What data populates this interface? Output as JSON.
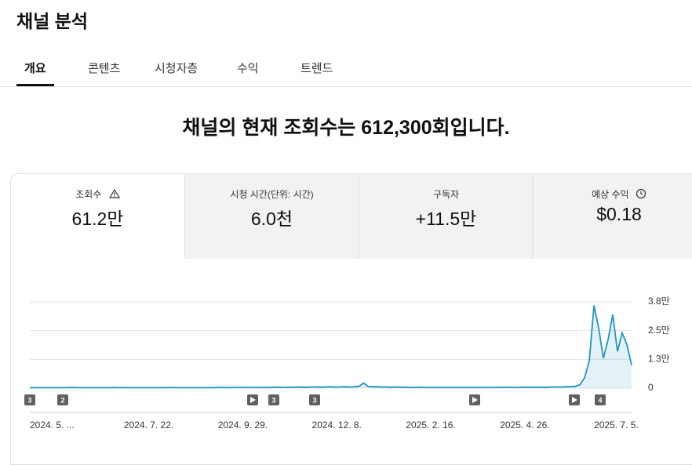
{
  "header": {
    "title": "채널 분석"
  },
  "tabs": [
    "개요",
    "콘텐츠",
    "시청자층",
    "수익",
    "트렌드"
  ],
  "headline": "채널의 현재 조회수는 612,300회입니다.",
  "metrics": [
    {
      "label": "조회수",
      "value": "61.2만"
    },
    {
      "label": "시청 시간(단위: 시간)",
      "value": "6.0천"
    },
    {
      "label": "구독자",
      "value": "+11.5만"
    },
    {
      "label": "예상 수익",
      "value": "$0.18"
    }
  ],
  "chart_markers": [
    "3",
    "2",
    "3",
    "3",
    "4"
  ],
  "chart_data": {
    "type": "line",
    "color": "#1e96be",
    "grid": true,
    "ylim": [
      0,
      3.75
    ],
    "yticks": [
      0,
      {
        "value": 1.25,
        "label": "1.3만"
      },
      {
        "value": 2.5,
        "label": "2.5만"
      },
      {
        "value": 3.75,
        "label": "3.8만"
      }
    ],
    "categories": [
      "2024. 5. ...",
      null,
      null,
      null,
      null,
      null,
      null,
      null,
      null,
      null,
      null,
      null,
      null,
      null,
      null,
      null,
      null,
      null,
      null,
      null,
      "2024. 7. 22.",
      null,
      null,
      null,
      null,
      null,
      null,
      null,
      null,
      null,
      null,
      null,
      null,
      null,
      null,
      null,
      null,
      null,
      null,
      null,
      "2024. 9. 29.",
      null,
      null,
      null,
      null,
      null,
      null,
      null,
      null,
      null,
      null,
      null,
      null,
      null,
      null,
      null,
      null,
      null,
      null,
      null,
      "2024. 12. 8.",
      null,
      null,
      null,
      null,
      null,
      null,
      null,
      null,
      null,
      null,
      null,
      null,
      null,
      null,
      null,
      null,
      null,
      null,
      null,
      "2025. 2. 16.",
      null,
      null,
      null,
      null,
      null,
      null,
      null,
      null,
      null,
      null,
      null,
      null,
      null,
      null,
      null,
      null,
      null,
      null,
      null,
      "2025. 4. 26.",
      null,
      null,
      null,
      null,
      null,
      null,
      null,
      null,
      null,
      null,
      null,
      null,
      null,
      null,
      null,
      null,
      null,
      null,
      null,
      "2025. 7. 5.",
      null,
      null,
      null,
      null,
      null,
      null,
      null,
      null
    ],
    "values": [
      0.02,
      0.02,
      0.02,
      0.02,
      0.02,
      0.02,
      0.02,
      0.02,
      0.02,
      0.03,
      0.02,
      0.02,
      0.02,
      0.02,
      0.02,
      0.02,
      0.02,
      0.02,
      0.03,
      0.02,
      0.02,
      0.02,
      0.02,
      0.02,
      0.02,
      0.02,
      0.02,
      0.02,
      0.02,
      0.02,
      0.03,
      0.02,
      0.02,
      0.02,
      0.02,
      0.02,
      0.02,
      0.02,
      0.02,
      0.02,
      0.03,
      0.03,
      0.02,
      0.03,
      0.03,
      0.03,
      0.03,
      0.03,
      0.03,
      0.03,
      0.03,
      0.03,
      0.04,
      0.04,
      0.03,
      0.04,
      0.04,
      0.05,
      0.04,
      0.04,
      0.05,
      0.05,
      0.04,
      0.05,
      0.06,
      0.05,
      0.05,
      0.06,
      0.05,
      0.06,
      0.08,
      0.22,
      0.07,
      0.06,
      0.06,
      0.05,
      0.05,
      0.04,
      0.05,
      0.04,
      0.04,
      0.03,
      0.03,
      0.04,
      0.03,
      0.03,
      0.03,
      0.03,
      0.03,
      0.03,
      0.03,
      0.03,
      0.03,
      0.03,
      0.03,
      0.03,
      0.03,
      0.03,
      0.03,
      0.03,
      0.04,
      0.03,
      0.04,
      0.03,
      0.03,
      0.04,
      0.04,
      0.04,
      0.04,
      0.04,
      0.04,
      0.05,
      0.05,
      0.05,
      0.06,
      0.06,
      0.08,
      0.15,
      0.45,
      1.2,
      3.6,
      2.6,
      1.3,
      2.1,
      3.2,
      1.6,
      2.4,
      1.9,
      1.0
    ]
  }
}
